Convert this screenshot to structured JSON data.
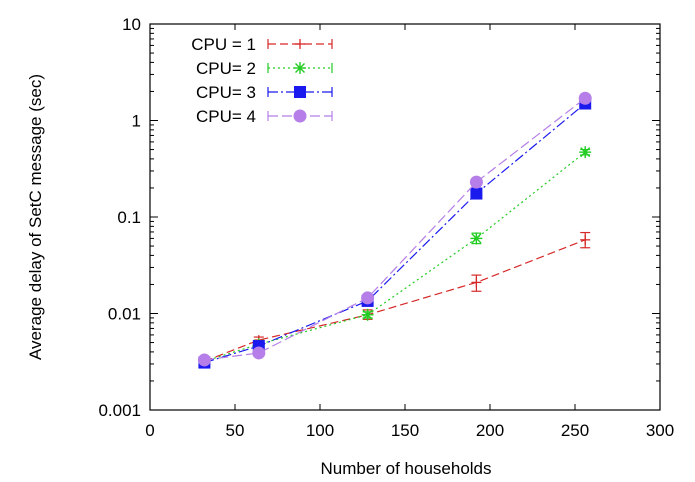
{
  "chart_data": {
    "type": "line",
    "xlabel": "Number of households",
    "ylabel": "Average delay of SetC message (sec)",
    "xlim": [
      0,
      300
    ],
    "ylim": [
      0.001,
      10
    ],
    "yscale": "log",
    "grid": false,
    "legend_position": "top-left",
    "x_ticks": [
      0,
      50,
      100,
      150,
      200,
      250,
      300
    ],
    "x_tick_labels": [
      "0",
      "50",
      "100",
      "150",
      "200",
      "250",
      "300"
    ],
    "y_ticks": [
      0.001,
      0.01,
      0.1,
      1,
      10
    ],
    "y_tick_labels": [
      "0.001",
      "0.01",
      "0.1",
      "1",
      "10"
    ],
    "series": [
      {
        "name": "CPU = 1",
        "color": "#d62828",
        "dash": "8,4",
        "marker": "plus",
        "x": [
          32,
          64,
          128,
          192,
          256
        ],
        "y": [
          0.0032,
          0.0053,
          0.0097,
          0.021,
          0.058
        ],
        "err_low": [
          0.003,
          0.005,
          0.0087,
          0.017,
          0.048
        ],
        "err_high": [
          0.0035,
          0.0057,
          0.0109,
          0.025,
          0.069
        ]
      },
      {
        "name": "CPU= 2",
        "color": "#22cc22",
        "dash": "2,3",
        "marker": "star",
        "x": [
          32,
          64,
          128,
          192,
          256
        ],
        "y": [
          0.0032,
          0.0048,
          0.0097,
          0.06,
          0.47
        ],
        "err_low": [
          0.003,
          0.0046,
          0.009,
          0.053,
          0.44
        ],
        "err_high": [
          0.0034,
          0.005,
          0.0104,
          0.068,
          0.5
        ]
      },
      {
        "name": "CPU= 3",
        "color": "#1a1aee",
        "dash": "10,3,2,3",
        "marker": "square",
        "x": [
          32,
          64,
          128,
          192,
          256
        ],
        "y": [
          0.0031,
          0.0046,
          0.0135,
          0.175,
          1.5
        ],
        "err_low": [
          0.003,
          0.0044,
          0.012,
          0.165,
          1.42
        ],
        "err_high": [
          0.0033,
          0.0048,
          0.015,
          0.185,
          1.6
        ]
      },
      {
        "name": "CPU= 4",
        "color": "#b57ee8",
        "dash": "10,4",
        "marker": "circle",
        "x": [
          32,
          64,
          128,
          192,
          256
        ],
        "y": [
          0.0033,
          0.0039,
          0.0145,
          0.23,
          1.7
        ],
        "err_low": [
          0.0031,
          0.0037,
          0.0135,
          0.215,
          1.6
        ],
        "err_high": [
          0.0035,
          0.0041,
          0.0155,
          0.245,
          1.8
        ]
      }
    ]
  }
}
